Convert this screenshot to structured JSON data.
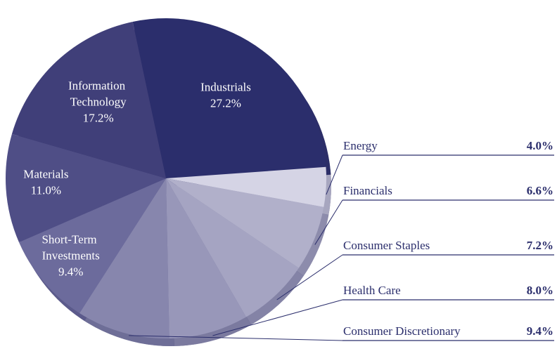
{
  "chart_data": {
    "type": "pie",
    "categories": [
      "Industrials",
      "Energy",
      "Financials",
      "Consumer Staples",
      "Health Care",
      "Consumer Discretionary",
      "Short-Term Investments",
      "Materials",
      "Information Technology"
    ],
    "values": [
      27.2,
      4.0,
      6.6,
      7.2,
      8.0,
      9.4,
      9.4,
      11.0,
      17.2
    ],
    "value_labels": [
      "27.2%",
      "4.0%",
      "6.6%",
      "7.2%",
      "8.0%",
      "9.4%",
      "9.4%",
      "11.0%",
      "17.2%"
    ],
    "colors": [
      "#2b2e6c",
      "#d5d4e5",
      "#b1b0ca",
      "#a5a4c2",
      "#9897b9",
      "#8786ad",
      "#6c6b9c",
      "#4f4e86",
      "#403f79"
    ]
  }
}
